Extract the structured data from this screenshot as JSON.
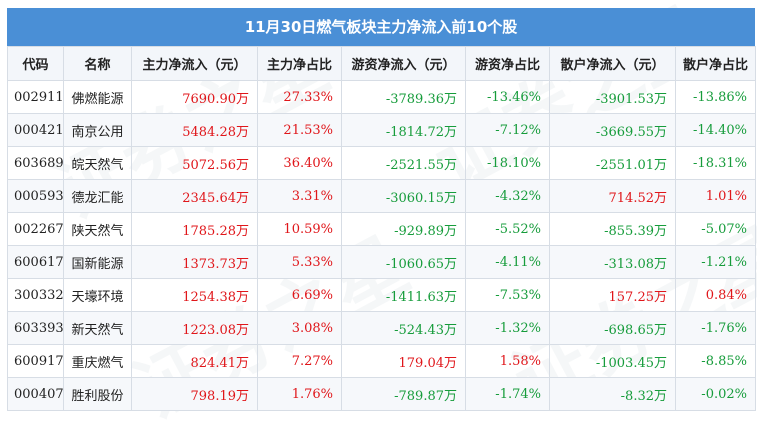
{
  "title": "11月30日燃气板块主力净流入前10个股",
  "headers": [
    "代码",
    "名称",
    "主力净流入（元）",
    "主力净占比",
    "游资净流入（元）",
    "游资净占比",
    "散户净流入（元）",
    "散户净占比"
  ],
  "rows": [
    {
      "code": "002911",
      "name": "佛燃能源",
      "main_in": "7690.90万",
      "main_pct": "27.33%",
      "hot_in": "-3789.36万",
      "hot_pct": "-13.46%",
      "retail_in": "-3901.53万",
      "retail_pct": "-13.86%"
    },
    {
      "code": "000421",
      "name": "南京公用",
      "main_in": "5484.28万",
      "main_pct": "21.53%",
      "hot_in": "-1814.72万",
      "hot_pct": "-7.12%",
      "retail_in": "-3669.55万",
      "retail_pct": "-14.40%"
    },
    {
      "code": "603689",
      "name": "皖天然气",
      "main_in": "5072.56万",
      "main_pct": "36.40%",
      "hot_in": "-2521.55万",
      "hot_pct": "-18.10%",
      "retail_in": "-2551.01万",
      "retail_pct": "-18.31%"
    },
    {
      "code": "000593",
      "name": "德龙汇能",
      "main_in": "2345.64万",
      "main_pct": "3.31%",
      "hot_in": "-3060.15万",
      "hot_pct": "-4.32%",
      "retail_in": "714.52万",
      "retail_pct": "1.01%"
    },
    {
      "code": "002267",
      "name": "陕天然气",
      "main_in": "1785.28万",
      "main_pct": "10.59%",
      "hot_in": "-929.89万",
      "hot_pct": "-5.52%",
      "retail_in": "-855.39万",
      "retail_pct": "-5.07%"
    },
    {
      "code": "600617",
      "name": "国新能源",
      "main_in": "1373.73万",
      "main_pct": "5.33%",
      "hot_in": "-1060.65万",
      "hot_pct": "-4.11%",
      "retail_in": "-313.08万",
      "retail_pct": "-1.21%"
    },
    {
      "code": "300332",
      "name": "天壕环境",
      "main_in": "1254.38万",
      "main_pct": "6.69%",
      "hot_in": "-1411.63万",
      "hot_pct": "-7.53%",
      "retail_in": "157.25万",
      "retail_pct": "0.84%"
    },
    {
      "code": "603393",
      "name": "新天然气",
      "main_in": "1223.08万",
      "main_pct": "3.08%",
      "hot_in": "-524.43万",
      "hot_pct": "-1.32%",
      "retail_in": "-698.65万",
      "retail_pct": "-1.76%"
    },
    {
      "code": "600917",
      "name": "重庆燃气",
      "main_in": "824.41万",
      "main_pct": "7.27%",
      "hot_in": "179.04万",
      "hot_pct": "1.58%",
      "retail_in": "-1003.45万",
      "retail_pct": "-8.85%"
    },
    {
      "code": "000407",
      "name": "胜利股份",
      "main_in": "798.19万",
      "main_pct": "1.76%",
      "hot_in": "-789.87万",
      "hot_pct": "-1.74%",
      "retail_in": "-8.32万",
      "retail_pct": "-0.02%"
    }
  ],
  "colors": {
    "title_bg": "#4a8fd6",
    "positive": "#e0161a",
    "negative": "#169c3b"
  }
}
